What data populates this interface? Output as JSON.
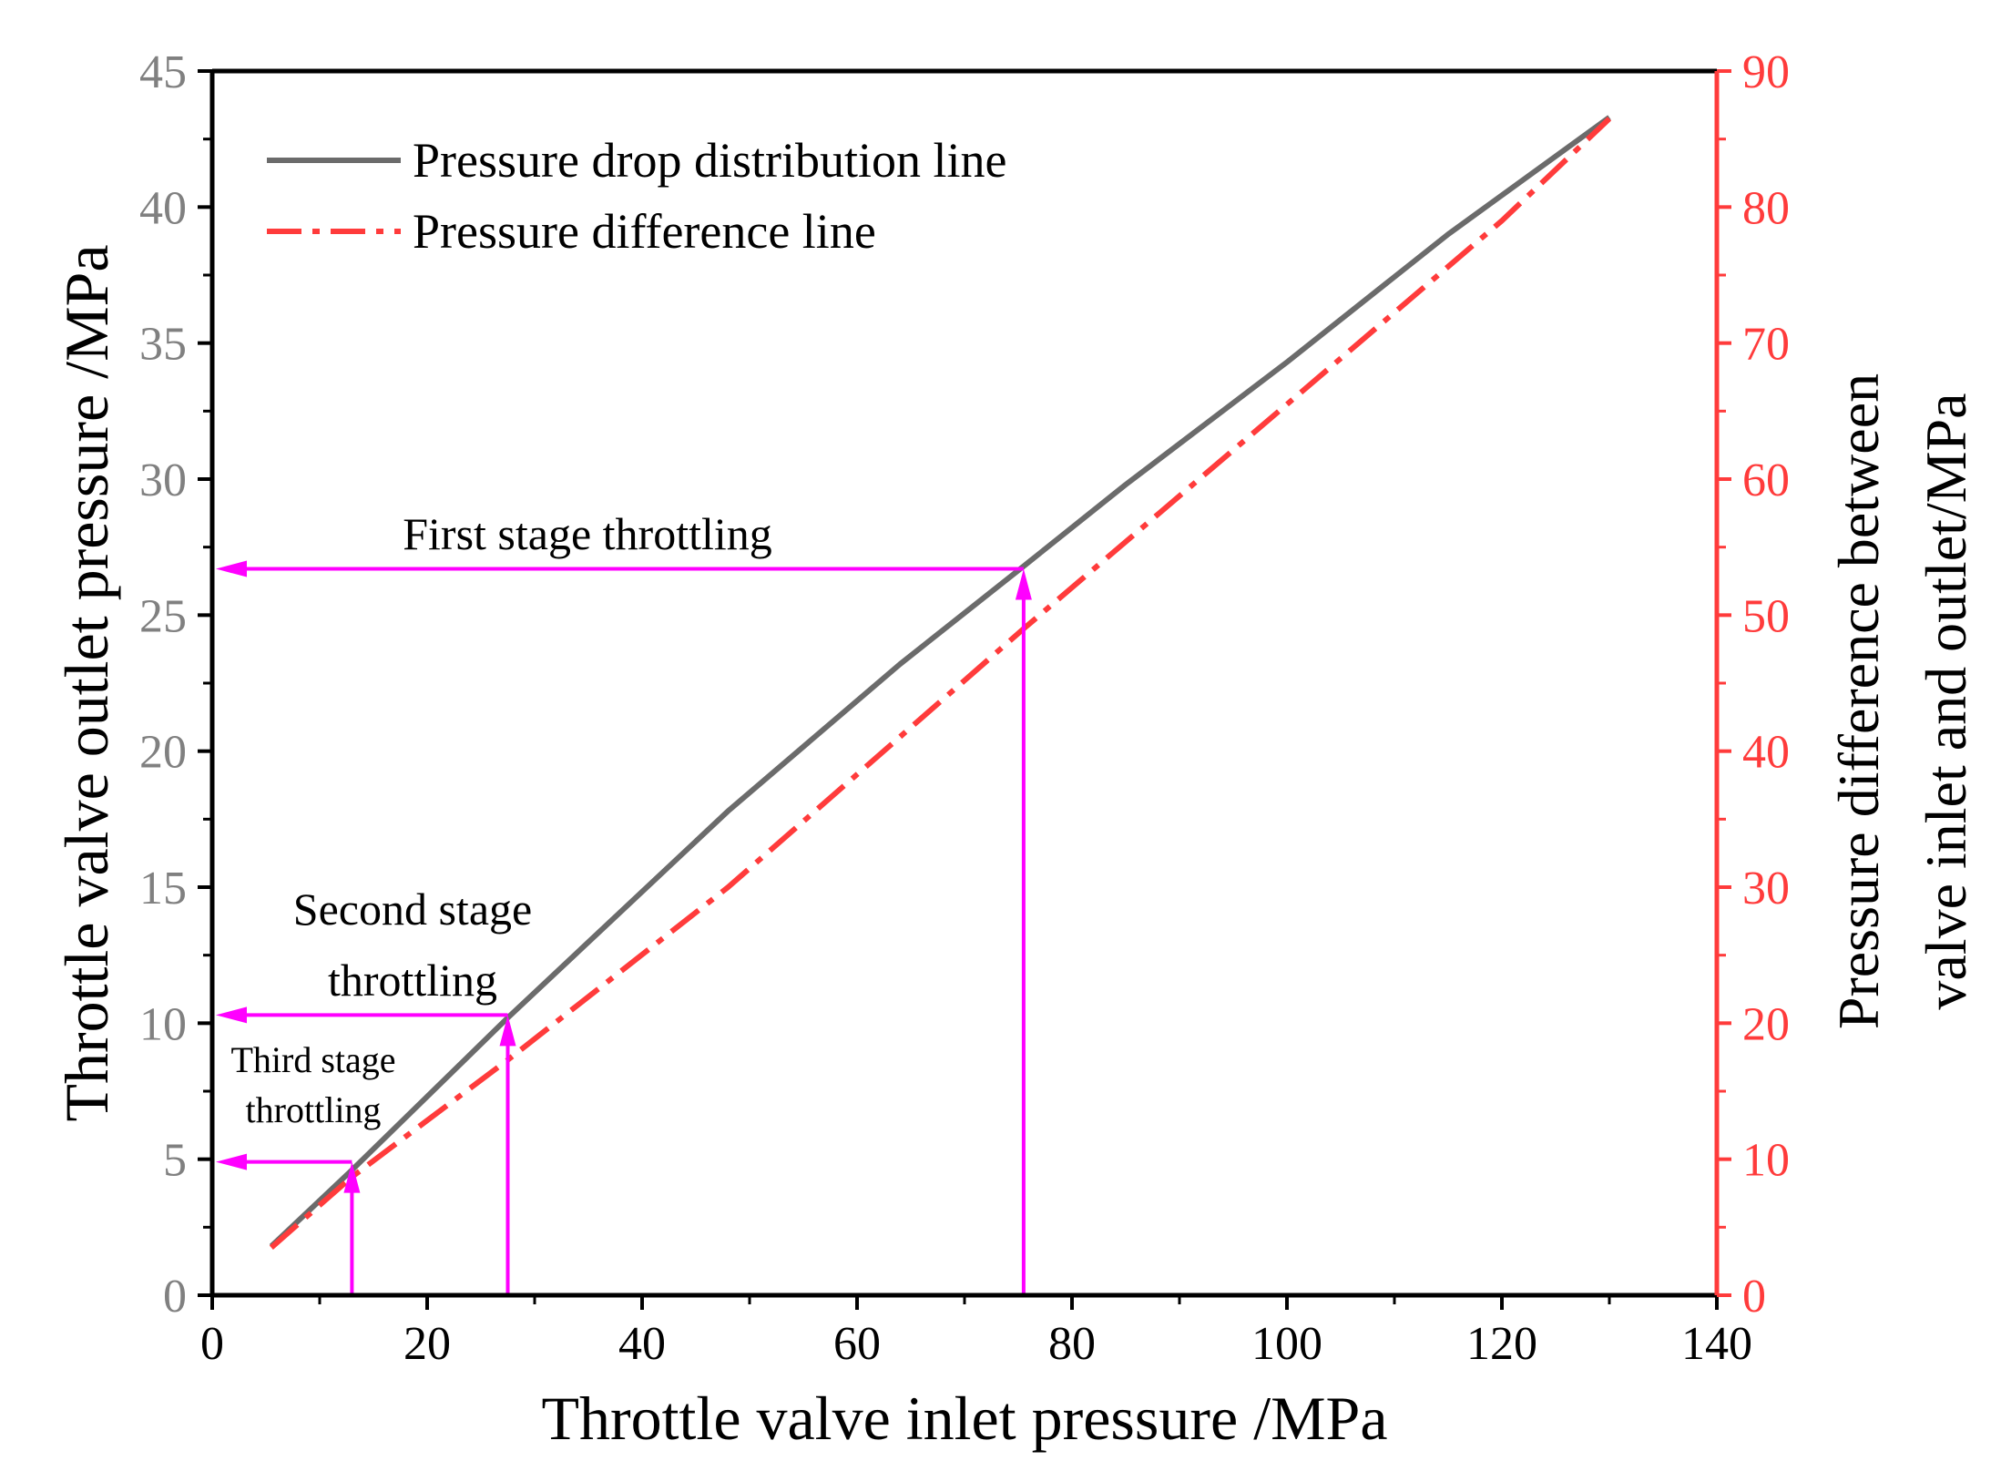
{
  "chart_data": {
    "type": "line",
    "xlabel": "Throttle valve inlet pressure /MPa",
    "ylabel_left": "Throttle valve outlet pressure /MPa",
    "ylabel_right_line1": "Pressure difference between",
    "ylabel_right_line2": "valve inlet and outlet/MPa",
    "xlim": [
      0,
      140
    ],
    "ylim_left": [
      0,
      45
    ],
    "ylim_right": [
      0,
      90
    ],
    "x_ticks": [
      0,
      20,
      40,
      60,
      80,
      100,
      120,
      140
    ],
    "y_left_ticks": [
      0,
      5,
      10,
      15,
      20,
      25,
      30,
      35,
      40,
      45
    ],
    "y_right_ticks": [
      0,
      10,
      20,
      30,
      40,
      50,
      60,
      70,
      80,
      90
    ],
    "legend_position": "top-left",
    "colors": {
      "pressure_drop": "#6b6b6b",
      "pressure_difference": "#ff3b3b",
      "annotation": "#ff00ff",
      "right_axis": "#ff3b3b",
      "left_axis_ticks": "#808080"
    },
    "series": [
      {
        "name": "Pressure drop distribution line",
        "axis": "left",
        "style": "solid",
        "x": [
          5.5,
          13,
          27.5,
          48,
          64,
          75.5,
          85,
          100,
          115,
          130
        ],
        "y": [
          1.8,
          4.6,
          10.2,
          17.8,
          23.2,
          26.8,
          29.8,
          34.3,
          39.0,
          43.3
        ]
      },
      {
        "name": "Pressure difference line",
        "axis": "right",
        "style": "dash-dot",
        "x": [
          5.5,
          13,
          27.5,
          48,
          75.5,
          100,
          120,
          130
        ],
        "y": [
          3.5,
          8.7,
          17.3,
          30.0,
          49.0,
          65.5,
          79.0,
          86.5
        ]
      }
    ],
    "annotations": [
      {
        "label_lines": [
          "First stage throttling"
        ],
        "x_inlet": 75.5,
        "y_outlet": 26.7
      },
      {
        "label_lines": [
          "Second stage",
          "throttling"
        ],
        "x_inlet": 27.5,
        "y_outlet": 10.3
      },
      {
        "label_lines": [
          "Third stage",
          "throttling"
        ],
        "x_inlet": 13,
        "y_outlet": 4.9
      }
    ]
  }
}
